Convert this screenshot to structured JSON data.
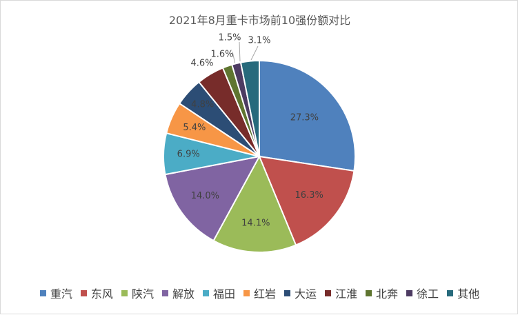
{
  "chart_data": {
    "type": "pie",
    "title": "2021年8月重卡市场前10强份额对比",
    "legend_position": "bottom",
    "categories": [
      "重汽",
      "东风",
      "陕汽",
      "解放",
      "福田",
      "红岩",
      "大运",
      "江淮",
      "北奔",
      "徐工",
      "其他"
    ],
    "values": [
      27.3,
      16.3,
      14.1,
      14.0,
      6.9,
      5.4,
      4.8,
      4.6,
      1.6,
      1.5,
      3.1
    ],
    "labels": [
      "27.3%",
      "16.3%",
      "14.1%",
      "14.0%",
      "6.9%",
      "5.4%",
      "4.8%",
      "4.6%",
      "1.6%",
      "1.5%",
      "3.1%"
    ],
    "colors": [
      "#4f81bd",
      "#c0504d",
      "#9bbb59",
      "#8064a2",
      "#4bacc6",
      "#f79646",
      "#2c4d75",
      "#772c2a",
      "#5f7530",
      "#4d3b62",
      "#276a7c"
    ]
  }
}
